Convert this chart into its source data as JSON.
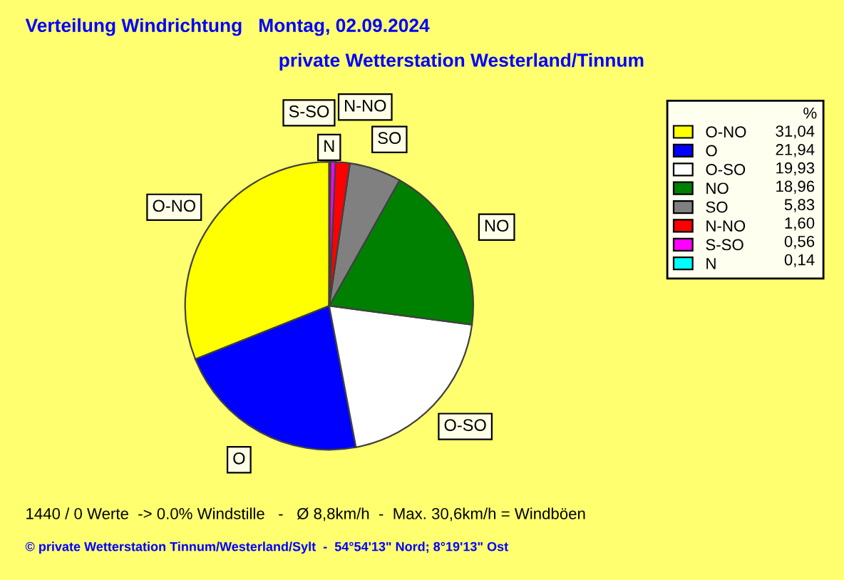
{
  "chart_data": {
    "type": "pie",
    "title": "Verteilung Windrichtung   Montag, 02.09.2024",
    "subtitle": "private Wetterstation Westerland/Tinnum",
    "categories": [
      "O-NO",
      "O",
      "O-SO",
      "NO",
      "SO",
      "N-NO",
      "S-SO",
      "N"
    ],
    "values": [
      31.04,
      21.94,
      19.93,
      18.96,
      5.83,
      1.6,
      0.56,
      0.14
    ],
    "value_labels": [
      "31,04",
      "21,94",
      "19,93",
      "18,96",
      "5,83",
      "1,60",
      "0,56",
      "0,14"
    ],
    "colors": [
      "#ffff00",
      "#0000ff",
      "#ffffff",
      "#008000",
      "#808080",
      "#ff0000",
      "#ff00ff",
      "#00ffff"
    ],
    "legend": "right",
    "legend_title": "%",
    "annotations": [
      "1440 / 0 Werte  -> 0.0% Windstille   -   Ø 8,8km/h  -  Max. 30,6km/h = Windböen",
      "© private Wetterstation Tinnum/Westerland/Sylt  -  54°54'13\" Nord; 8°19'13\" Ost"
    ]
  }
}
